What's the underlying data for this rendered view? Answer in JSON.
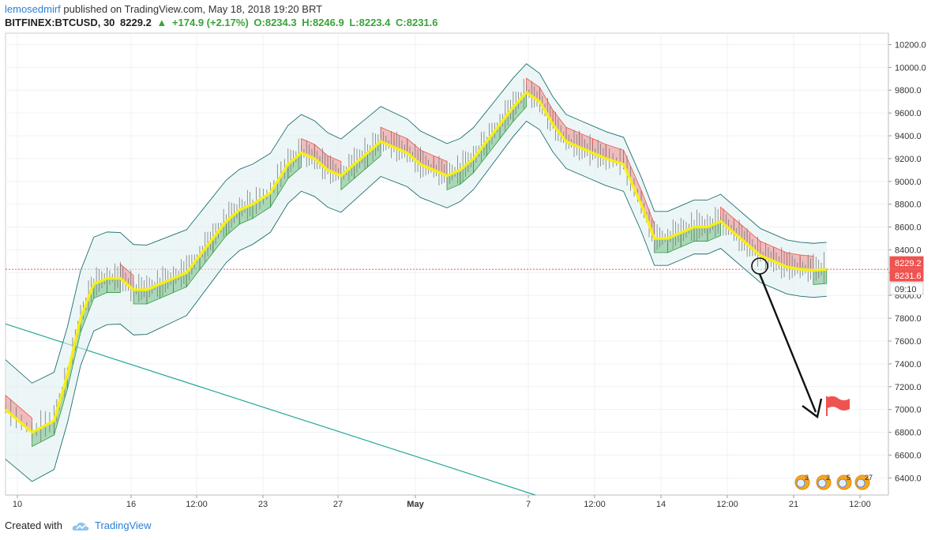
{
  "header": {
    "user": "lemosedmirf",
    "published_text": "published on TradingView.com, May 18, 2018 19:20 BRT",
    "symbol": "BITFINEX:BTCUSD, 30",
    "last": "8229.2",
    "change": "+174.9 (+2.17%)",
    "open": "O:8234.3",
    "high": "H:8246.9",
    "low": "L:8223.4",
    "close": "C:8231.6"
  },
  "footer": {
    "created_with": "Created with",
    "brand": "TradingView"
  },
  "colors": {
    "yellow_line": "#f5ee1a",
    "red_cloud": "#ef5350",
    "green_cloud": "#2e9e3e",
    "teal_line": "#26a69a",
    "band": "#1c6f6f",
    "candle": "#7a7a7a",
    "price_label_bg": "#ef5350"
  },
  "chart_data": {
    "type": "line",
    "title": "",
    "xlabel": "",
    "ylabel": "",
    "ylim": [
      6250,
      10300
    ],
    "y_ticks": [
      "10200.0",
      "10000.0",
      "9800.0",
      "9600.0",
      "9400.0",
      "9200.0",
      "9000.0",
      "8800.0",
      "8600.0",
      "8400.0",
      "8200.0",
      "8000.0",
      "7800.0",
      "7600.0",
      "7400.0",
      "7200.0",
      "7000.0",
      "6800.0",
      "6600.0",
      "6400.0"
    ],
    "x_ticks": [
      "10",
      "16",
      "12:00",
      "23",
      "27",
      "May",
      "7",
      "12:00",
      "14",
      "12:00",
      "21",
      "12:00"
    ],
    "current_price_labels": [
      "8229.2",
      "8231.6",
      "09:10"
    ],
    "current_price": 8229.2,
    "trend_line": {
      "from": [
        0.0,
        7750
      ],
      "to": [
        0.6,
        6250
      ]
    },
    "series": [
      {
        "x": [
          0.0,
          0.03,
          0.055,
          0.07,
          0.085,
          0.1,
          0.115,
          0.13,
          0.145,
          0.16,
          0.175,
          0.19,
          0.205,
          0.22,
          0.235,
          0.25,
          0.265,
          0.28,
          0.3,
          0.32,
          0.335,
          0.35,
          0.365,
          0.38,
          0.395,
          0.41,
          0.425,
          0.44,
          0.455,
          0.47,
          0.485,
          0.5,
          0.515,
          0.53,
          0.545,
          0.56,
          0.575,
          0.59,
          0.605,
          0.62,
          0.635,
          0.65,
          0.665,
          0.68,
          0.7,
          0.72,
          0.735,
          0.75,
          0.765,
          0.78,
          0.795,
          0.81,
          0.825,
          0.84,
          0.855,
          0.87,
          0.885,
          0.9,
          0.915,
          0.93
        ],
        "values": [
          7000,
          6800,
          6900,
          7300,
          7800,
          8100,
          8150,
          8150,
          8050,
          8050,
          8100,
          8150,
          8200,
          8350,
          8500,
          8650,
          8750,
          8800,
          8900,
          9150,
          9250,
          9200,
          9100,
          9050,
          9150,
          9250,
          9350,
          9300,
          9250,
          9150,
          9100,
          9050,
          9100,
          9200,
          9350,
          9500,
          9650,
          9780,
          9700,
          9500,
          9350,
          9300,
          9250,
          9200,
          9150,
          8800,
          8500,
          8500,
          8550,
          8600,
          8600,
          8650,
          8550,
          8450,
          8350,
          8300,
          8250,
          8230,
          8220,
          8229
        ]
      }
    ]
  }
}
